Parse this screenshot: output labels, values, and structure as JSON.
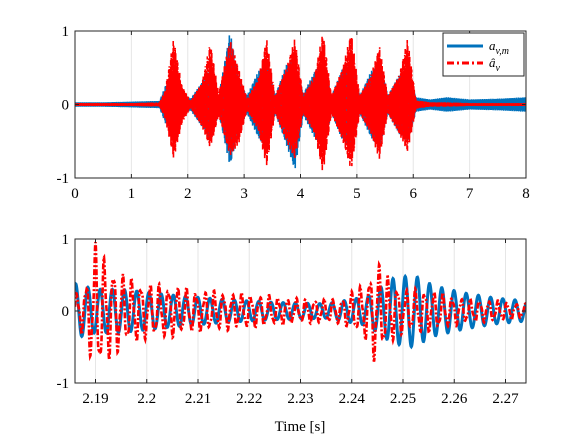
{
  "chart_data": [
    {
      "type": "line",
      "xlim": [
        0,
        8
      ],
      "ylim": [
        -1,
        1
      ],
      "x_ticks": [
        0,
        1,
        2,
        3,
        4,
        5,
        6,
        7,
        8
      ],
      "y_ticks": [
        -1,
        0,
        1
      ],
      "grid": "vertical",
      "legend_position": "top-right",
      "series": [
        {
          "name": "a_{v,m}",
          "color": "#0072bd",
          "line_style": "solid",
          "envelope": {
            "x": [
              0,
              0.5,
              1.0,
              1.5,
              1.6,
              1.75,
              1.9,
              2.05,
              2.25,
              2.4,
              2.55,
              2.75,
              2.9,
              3.05,
              3.25,
              3.4,
              3.55,
              3.75,
              3.9,
              4.05,
              4.25,
              4.4,
              4.55,
              4.75,
              4.9,
              5.05,
              5.25,
              5.4,
              5.55,
              5.75,
              5.9,
              6.05,
              6.3,
              6.6,
              7.0,
              7.5,
              8.0
            ],
            "upper": [
              0.03,
              0.03,
              0.04,
              0.05,
              0.25,
              0.45,
              0.15,
              0.08,
              0.3,
              0.5,
              0.12,
              1.0,
              0.35,
              0.12,
              0.45,
              0.6,
              0.12,
              0.55,
              0.6,
              0.15,
              0.45,
              0.6,
              0.12,
              0.5,
              0.6,
              0.12,
              0.45,
              0.6,
              0.12,
              0.4,
              0.5,
              0.1,
              0.07,
              0.1,
              0.07,
              0.08,
              0.1
            ],
            "lower": [
              -0.03,
              -0.03,
              -0.04,
              -0.05,
              -0.25,
              -0.45,
              -0.15,
              -0.08,
              -0.3,
              -0.5,
              -0.12,
              -0.85,
              -0.35,
              -0.12,
              -0.45,
              -0.6,
              -0.12,
              -0.55,
              -0.9,
              -0.15,
              -0.45,
              -0.65,
              -0.12,
              -0.5,
              -0.6,
              -0.12,
              -0.45,
              -0.6,
              -0.12,
              -0.4,
              -0.5,
              -0.1,
              -0.07,
              -0.1,
              -0.07,
              -0.08,
              -0.1
            ]
          }
        },
        {
          "name": "â_v",
          "color": "#ff0000",
          "line_style": "dash-dot",
          "envelope": {
            "x": [
              0,
              0.5,
              1.0,
              1.5,
              1.6,
              1.75,
              1.9,
              2.05,
              2.25,
              2.4,
              2.55,
              2.75,
              2.9,
              3.05,
              3.25,
              3.4,
              3.55,
              3.75,
              3.9,
              4.05,
              4.25,
              4.4,
              4.55,
              4.75,
              4.9,
              5.05,
              5.25,
              5.4,
              5.55,
              5.75,
              5.9,
              6.05,
              6.3,
              6.6,
              7.0,
              7.5,
              8.0
            ],
            "upper": [
              0.02,
              0.02,
              0.02,
              0.03,
              0.2,
              0.9,
              0.25,
              0.05,
              0.3,
              0.85,
              0.15,
              0.9,
              0.5,
              0.08,
              0.35,
              0.9,
              0.12,
              0.5,
              0.9,
              0.12,
              0.4,
              1.0,
              0.12,
              0.5,
              1.0,
              0.12,
              0.4,
              0.8,
              0.12,
              0.4,
              0.9,
              0.06,
              0.03,
              0.03,
              0.02,
              0.02,
              0.02
            ],
            "lower": [
              -0.02,
              -0.02,
              -0.02,
              -0.03,
              -0.2,
              -0.75,
              -0.25,
              -0.05,
              -0.3,
              -0.6,
              -0.15,
              -0.7,
              -0.55,
              -0.08,
              -0.35,
              -0.85,
              -0.12,
              -0.5,
              -0.75,
              -0.12,
              -0.4,
              -0.95,
              -0.12,
              -0.5,
              -0.9,
              -0.12,
              -0.4,
              -0.75,
              -0.12,
              -0.4,
              -0.65,
              -0.06,
              -0.03,
              -0.03,
              -0.02,
              -0.02,
              -0.02
            ]
          }
        }
      ]
    },
    {
      "type": "line",
      "xlim": [
        2.186,
        2.274
      ],
      "ylim": [
        -1,
        1
      ],
      "x_ticks": [
        2.19,
        2.2,
        2.21,
        2.22,
        2.23,
        2.24,
        2.25,
        2.26,
        2.27
      ],
      "y_ticks": [
        -1,
        0,
        1
      ],
      "xlabel": "Time [s]",
      "grid": "vertical",
      "series": [
        {
          "name": "a_{v,m}",
          "color": "#0072bd",
          "line_style": "solid",
          "frequency_hz": 420,
          "envelope": {
            "x": [
              2.186,
              2.19,
              2.195,
              2.205,
              2.215,
              2.225,
              2.235,
              2.243,
              2.248,
              2.252,
              2.256,
              2.262,
              2.268,
              2.274
            ],
            "amplitude": [
              0.38,
              0.3,
              0.3,
              0.22,
              0.16,
              0.12,
              0.1,
              0.2,
              0.45,
              0.5,
              0.35,
              0.25,
              0.18,
              0.14
            ]
          }
        },
        {
          "name": "â_v",
          "color": "#ff0000",
          "line_style": "dash-dot",
          "frequency_hz": 560,
          "envelope": {
            "x": [
              2.186,
              2.188,
              2.19,
              2.192,
              2.196,
              2.2,
              2.205,
              2.21,
              2.22,
              2.23,
              2.238,
              2.243,
              2.2445,
              2.247,
              2.25,
              2.255,
              2.262,
              2.268,
              2.274
            ],
            "amplitude": [
              0.2,
              0.3,
              0.8,
              0.6,
              0.4,
              0.32,
              0.3,
              0.24,
              0.2,
              0.14,
              0.14,
              0.35,
              0.62,
              0.4,
              0.25,
              0.25,
              0.14,
              0.12,
              0.08
            ]
          }
        }
      ]
    }
  ]
}
